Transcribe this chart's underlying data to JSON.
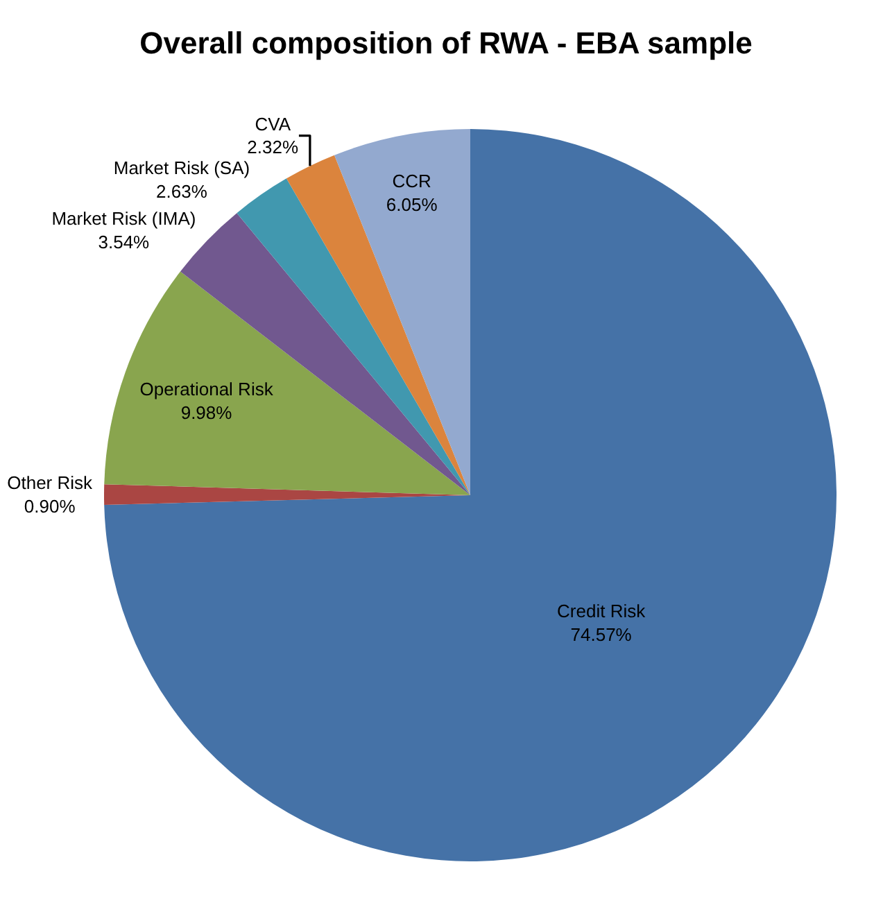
{
  "chart_data": {
    "type": "pie",
    "title": "Overall composition of RWA - EBA sample",
    "categories": [
      "Credit Risk",
      "Other Risk",
      "Operational Risk",
      "Market Risk (IMA)",
      "Market Risk (SA)",
      "CVA",
      "CCR"
    ],
    "values": [
      74.57,
      0.9,
      9.98,
      3.54,
      2.63,
      2.32,
      6.05
    ],
    "value_labels": [
      "74.57%",
      "0.90%",
      "9.98%",
      "3.54%",
      "2.63%",
      "2.32%",
      "6.05%"
    ],
    "colors": [
      "#4572a7",
      "#aa4643",
      "#89a54e",
      "#71588f",
      "#4198af",
      "#db843d",
      "#93a9cf"
    ],
    "legend": false
  }
}
